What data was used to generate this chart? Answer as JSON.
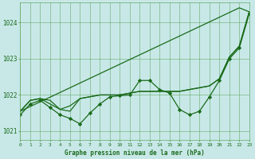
{
  "title": "Graphe pression niveau de la mer (hPa)",
  "background_color": "#c8e8e8",
  "grid_color": "#66aa66",
  "line_color": "#1a6b1a",
  "xlim": [
    0,
    23
  ],
  "ylim": [
    1020.75,
    1024.55
  ],
  "yticks": [
    1021,
    1022,
    1023,
    1024
  ],
  "xticks": [
    0,
    1,
    2,
    3,
    4,
    5,
    6,
    7,
    8,
    9,
    10,
    11,
    12,
    13,
    14,
    15,
    16,
    17,
    18,
    19,
    20,
    21,
    22,
    23
  ],
  "series": [
    {
      "y": [
        1021.55,
        1021.85,
        1021.9,
        1021.75,
        1021.6,
        1021.7,
        1021.9,
        1021.95,
        1022.0,
        1022.0,
        1022.0,
        1022.05,
        1022.1,
        1022.1,
        1022.1,
        1022.1,
        1022.1,
        1022.15,
        1022.2,
        1022.25,
        1022.45,
        1023.05,
        1023.35,
        1024.3
      ],
      "marker": null,
      "linewidth": 0.9
    },
    {
      "y": [
        1021.55,
        1021.85,
        1021.9,
        1021.85,
        1021.6,
        1021.55,
        1021.9,
        1021.95,
        1022.0,
        1022.0,
        1022.0,
        1022.05,
        1022.1,
        1022.1,
        1022.1,
        1022.1,
        1022.1,
        1022.15,
        1022.2,
        1022.25,
        1022.45,
        1023.05,
        1023.35,
        1024.3
      ],
      "marker": null,
      "linewidth": 0.9
    },
    {
      "y": [
        1021.45,
        1021.75,
        1021.85,
        1021.65,
        1021.45,
        1021.35,
        1021.2,
        1021.5,
        1021.75,
        1021.95,
        1021.98,
        1022.0,
        1022.4,
        1022.4,
        1022.15,
        1022.05,
        1021.6,
        1021.45,
        1021.55,
        1021.95,
        1022.4,
        1023.0,
        1023.3,
        1024.25
      ],
      "marker": "D",
      "markersize": 2.2,
      "linewidth": 0.9
    },
    {
      "y": [
        1021.55,
        1021.68,
        1021.81,
        1021.94,
        1022.07,
        1022.2,
        1022.33,
        1022.46,
        1022.59,
        1022.72,
        1022.85,
        1022.98,
        1023.11,
        1023.24,
        1023.37,
        1023.5,
        1023.63,
        1023.76,
        1023.89,
        1024.02,
        1024.15,
        1024.28,
        1024.41,
        1024.3
      ],
      "marker": null,
      "linewidth": 0.9
    }
  ]
}
